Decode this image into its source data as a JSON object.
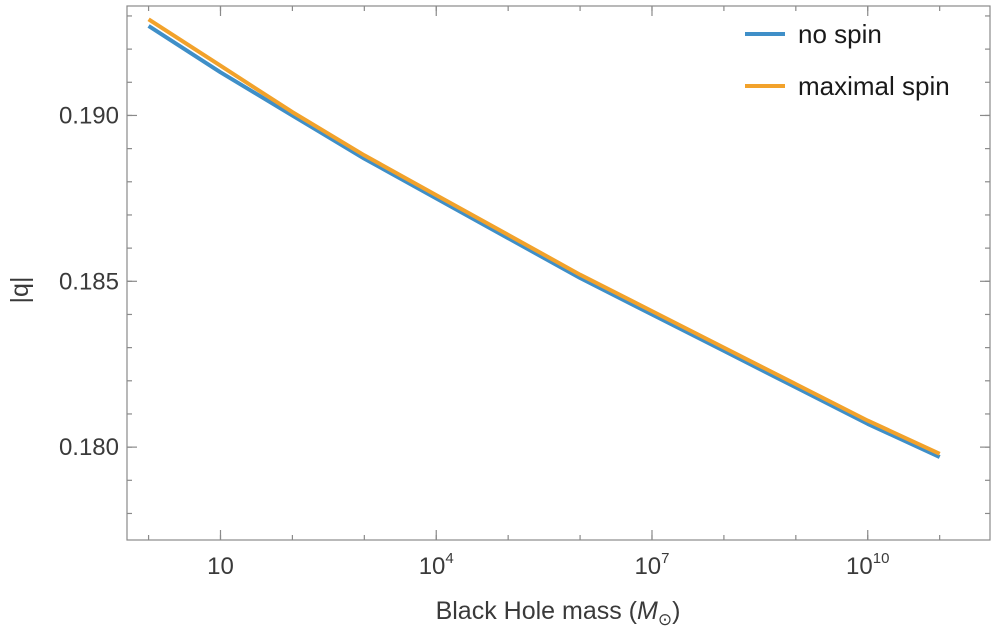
{
  "chart_data": {
    "type": "line",
    "title": "",
    "xlabel": "Black Hole mass (",
    "xlabel_symbol": "M",
    "xlabel_subscript": "⊙",
    "xlabel_close": ")",
    "ylabel": "|q|",
    "x_scale": "log10",
    "xlim_log10": [
      -0.3,
      11.7
    ],
    "ylim": [
      0.1772,
      0.1933
    ],
    "x_ticks": [
      {
        "log10": 1,
        "base": "10",
        "exp": ""
      },
      {
        "log10": 4,
        "base": "10",
        "exp": "4"
      },
      {
        "log10": 7,
        "base": "10",
        "exp": "7"
      },
      {
        "log10": 10,
        "base": "10",
        "exp": "10"
      }
    ],
    "y_ticks": [
      {
        "value": 0.18,
        "label": "0.180"
      },
      {
        "value": 0.185,
        "label": "0.185"
      },
      {
        "value": 0.19,
        "label": "0.190"
      }
    ],
    "y_minor_step": 0.001,
    "series": [
      {
        "name": "no spin",
        "color": "#3f8fc8",
        "log10_mass": [
          0,
          1,
          2,
          3,
          4,
          5,
          6,
          7,
          8,
          9,
          10,
          11
        ],
        "values": [
          0.1927,
          0.1913,
          0.19,
          0.1887,
          0.1875,
          0.1863,
          0.1851,
          0.184,
          0.1829,
          0.1818,
          0.1807,
          0.1797
        ]
      },
      {
        "name": "maximal spin",
        "color": "#f2a22b",
        "log10_mass": [
          0,
          1,
          2,
          3,
          4,
          5,
          6,
          7,
          8,
          9,
          10,
          11
        ],
        "values": [
          0.1929,
          0.1915,
          0.1901,
          0.1888,
          0.1876,
          0.1864,
          0.1852,
          0.1841,
          0.183,
          0.1819,
          0.1808,
          0.1798
        ]
      }
    ],
    "legend_position": "top-right"
  }
}
